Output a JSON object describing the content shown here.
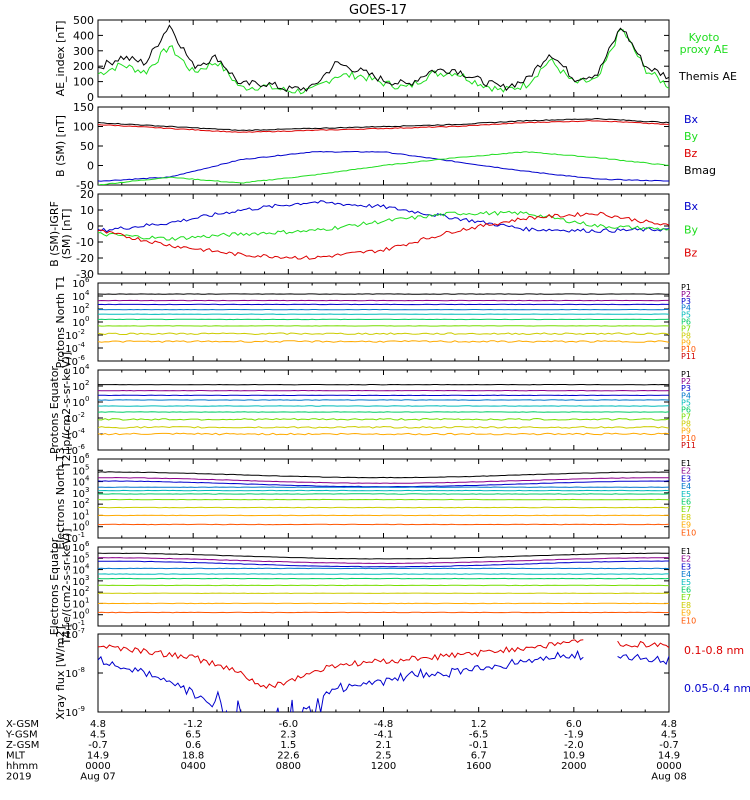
{
  "title": "GOES-17",
  "colors": {
    "black": "#000000",
    "green": "#20dd20",
    "blue": "#0000cc",
    "red": "#dd0000",
    "channels": [
      "#000000",
      "#8b008b",
      "#0000cc",
      "#0077cc",
      "#00bbbb",
      "#00cc66",
      "#77dd00",
      "#cccc00",
      "#ffaa00",
      "#ff5500",
      "#cc0000"
    ]
  },
  "chart_data": [
    {
      "type": "line",
      "ylabel": "AE_index [nT]",
      "ylim": [
        0,
        500
      ],
      "yticks": [
        "500",
        "400",
        "300",
        "200",
        "100",
        "0"
      ],
      "legend": [
        "Kyoto proxy AE",
        "Themis AE"
      ],
      "series": [
        {
          "name": "Kyoto proxy AE",
          "color": "#20dd20",
          "x": [
            0,
            1,
            2,
            3,
            4,
            5,
            6,
            7,
            8,
            9,
            10,
            11,
            12,
            13,
            14,
            15,
            16,
            17,
            18,
            19,
            20,
            21,
            22,
            23,
            24
          ],
          "values": [
            150,
            210,
            160,
            330,
            160,
            230,
            60,
            70,
            40,
            40,
            140,
            140,
            90,
            60,
            150,
            160,
            90,
            40,
            80,
            240,
            90,
            110,
            450,
            180,
            70
          ]
        },
        {
          "name": "Themis AE",
          "color": "#000000",
          "x": [
            0,
            1,
            2,
            3,
            4,
            5,
            6,
            7,
            8,
            9,
            10,
            11,
            12,
            13,
            14,
            15,
            16,
            17,
            18,
            19,
            20,
            21,
            22,
            23,
            24
          ],
          "values": [
            190,
            260,
            220,
            470,
            200,
            260,
            80,
            90,
            50,
            60,
            220,
            170,
            110,
            80,
            170,
            180,
            110,
            60,
            110,
            290,
            120,
            150,
            460,
            200,
            130
          ]
        }
      ]
    },
    {
      "type": "line",
      "ylabel": "B (SM) [nT]",
      "ylim": [
        -50,
        150
      ],
      "yticks": [
        "150",
        "100",
        "50",
        "0",
        "-50"
      ],
      "legend": [
        "Bx",
        "By",
        "Bz",
        "Bmag"
      ],
      "series": [
        {
          "name": "Bx",
          "color": "#0000cc",
          "x": [
            0,
            3,
            6,
            9,
            12,
            15,
            18,
            21,
            24
          ],
          "values": [
            -40,
            -30,
            15,
            35,
            35,
            10,
            -15,
            -35,
            -40
          ]
        },
        {
          "name": "By",
          "color": "#20dd20",
          "x": [
            0,
            3,
            6,
            9,
            12,
            15,
            18,
            21,
            24
          ],
          "values": [
            -50,
            -30,
            -45,
            -25,
            0,
            20,
            35,
            20,
            0
          ]
        },
        {
          "name": "Bz",
          "color": "#dd0000",
          "x": [
            0,
            3,
            6,
            9,
            12,
            15,
            18,
            21,
            24
          ],
          "values": [
            105,
            95,
            85,
            90,
            95,
            100,
            110,
            115,
            105
          ]
        },
        {
          "name": "Bmag",
          "color": "#000000",
          "x": [
            0,
            3,
            6,
            9,
            12,
            15,
            18,
            21,
            24
          ],
          "values": [
            110,
            100,
            90,
            95,
            100,
            105,
            115,
            120,
            110
          ]
        }
      ]
    },
    {
      "type": "line",
      "ylabel": "B (SM)-IGRF (SM) [nT]",
      "ylim": [
        -30,
        20
      ],
      "yticks": [
        "20",
        "10",
        "0",
        "-10",
        "-20",
        "-30"
      ],
      "legend": [
        "Bx",
        "By",
        "Bz"
      ],
      "series": [
        {
          "name": "Bx",
          "color": "#0000cc",
          "x": [
            0,
            3,
            6,
            9,
            12,
            15,
            18,
            21,
            24
          ],
          "values": [
            -3,
            2,
            10,
            15,
            12,
            5,
            -2,
            -3,
            -2
          ]
        },
        {
          "name": "By",
          "color": "#20dd20",
          "x": [
            0,
            3,
            6,
            9,
            12,
            15,
            18,
            21,
            24
          ],
          "values": [
            -5,
            -8,
            -5,
            -3,
            3,
            8,
            8,
            0,
            -2
          ]
        },
        {
          "name": "Bz",
          "color": "#dd0000",
          "x": [
            0,
            3,
            6,
            9,
            12,
            15,
            18,
            21,
            24
          ],
          "values": [
            -3,
            -12,
            -18,
            -20,
            -15,
            -3,
            5,
            8,
            0
          ]
        }
      ]
    },
    {
      "type": "line",
      "ylabel": "Protons North T1",
      "log": true,
      "ylim_exp": [
        -6,
        6
      ],
      "yticks": [
        "10^6",
        "10^4",
        "10^2",
        "10^0",
        "10^-2",
        "10^-4",
        "10^-6"
      ],
      "channels": [
        "P1",
        "P2",
        "P3",
        "P4",
        "P5",
        "P6",
        "P7",
        "P8",
        "P9",
        "P10",
        "P11"
      ],
      "levels_exp": [
        4.3,
        3.3,
        2.7,
        1.9,
        1.2,
        0.4,
        -0.6,
        -1.8,
        -3.0,
        -7,
        -7
      ]
    },
    {
      "type": "line",
      "ylabel": "Protons Equator T2 [p/(cm2-s-sr-keV)]",
      "log": true,
      "ylim_exp": [
        -6,
        6
      ],
      "yticks": [
        "10^4",
        "10^2",
        "10^0",
        "10^-2",
        "10^-4",
        "10^-6"
      ],
      "channels": [
        "P1",
        "P2",
        "P3",
        "P4",
        "P5",
        "P6",
        "P7",
        "P8",
        "P9",
        "P10",
        "P11"
      ],
      "levels_exp": [
        3.8,
        2.9,
        2.2,
        1.5,
        0.6,
        -0.3,
        -1.4,
        -2.6,
        -3.6,
        -7,
        -7
      ]
    },
    {
      "type": "line",
      "ylabel": "Electrons North T3",
      "log": true,
      "ylim_exp": [
        -1,
        6
      ],
      "yticks": [
        "10^6",
        "10^5",
        "10^4",
        "10^3",
        "10^2",
        "10^1",
        "10^0",
        "10^-1"
      ],
      "channels": [
        "E1",
        "E2",
        "E3",
        "E4",
        "E5",
        "E6",
        "E7",
        "E8",
        "E9",
        "E10"
      ],
      "levels_exp": [
        4.6,
        4.1,
        3.8,
        3.5,
        3.2,
        2.9,
        2.4,
        1.7,
        1.0,
        0.2
      ]
    },
    {
      "type": "line",
      "ylabel": "Electrons Equator T4 [e/(cm2-s-sr-keV)]",
      "log": true,
      "ylim_exp": [
        -1,
        6
      ],
      "yticks": [
        "10^6",
        "10^5",
        "10^4",
        "10^3",
        "10^2",
        "10^1",
        "10^0",
        "10^-1"
      ],
      "channels": [
        "E1",
        "E2",
        "E3",
        "E4",
        "E5",
        "E6",
        "E7",
        "E8",
        "E9",
        "E10"
      ],
      "levels_exp": [
        5.2,
        4.8,
        4.5,
        4.1,
        3.6,
        3.2,
        2.6,
        1.9,
        1.0,
        0.2
      ]
    },
    {
      "type": "line",
      "ylabel": "Xray flux [W/m2]",
      "log": true,
      "ylim_exp": [
        -9,
        -7
      ],
      "yticks": [
        "10^-7",
        "10^-8",
        "10^-9"
      ],
      "legend": [
        "0.1-0.8 nm",
        "0.05-0.4 nm"
      ],
      "series": [
        {
          "name": "0.1-0.8 nm",
          "color": "#dd0000",
          "x": [
            0,
            2,
            4,
            6,
            7,
            8,
            9,
            10,
            12,
            14,
            16,
            18,
            20,
            22,
            24
          ],
          "values": [
            -7.3,
            -7.45,
            -7.6,
            -8.0,
            -8.4,
            -8.2,
            -8.0,
            -7.8,
            -7.7,
            -7.6,
            -7.5,
            -7.35,
            -7.2,
            -7.25,
            -7.3
          ]
        },
        {
          "name": "0.05-0.4 nm",
          "color": "#0000cc",
          "x": [
            0,
            2,
            4,
            6,
            7,
            8,
            9,
            10,
            12,
            14,
            16,
            18,
            20,
            22,
            24
          ],
          "values": [
            -7.7,
            -8.0,
            -8.5,
            -9.2,
            -9.5,
            -9.3,
            -8.8,
            -8.4,
            -8.2,
            -8.0,
            -7.9,
            -7.7,
            -7.55,
            -7.6,
            -7.7
          ]
        }
      ]
    }
  ],
  "orbit_table": {
    "rows": [
      {
        "label": "X-GSM",
        "values": [
          "4.8",
          "-1.2",
          "-6.0",
          "-4.8",
          "1.2",
          "6.0",
          "4.8"
        ]
      },
      {
        "label": "Y-GSM",
        "values": [
          "4.5",
          "6.5",
          "2.3",
          "-4.1",
          "-6.5",
          "-1.9",
          "4.5"
        ]
      },
      {
        "label": "Z-GSM",
        "values": [
          "-0.7",
          "0.6",
          "1.5",
          "2.1",
          "-0.1",
          "-2.0",
          "-0.7"
        ]
      },
      {
        "label": "MLT",
        "values": [
          "14.9",
          "18.8",
          "22.6",
          "2.5",
          "6.7",
          "10.9",
          "14.9"
        ]
      },
      {
        "label": "hhmm",
        "values": [
          "0000",
          "0400",
          "0800",
          "1200",
          "1600",
          "2000",
          "0000"
        ]
      },
      {
        "label": "2019",
        "values": [
          "Aug 07",
          "",
          "",
          "",
          "",
          "",
          "Aug 08"
        ]
      }
    ]
  }
}
